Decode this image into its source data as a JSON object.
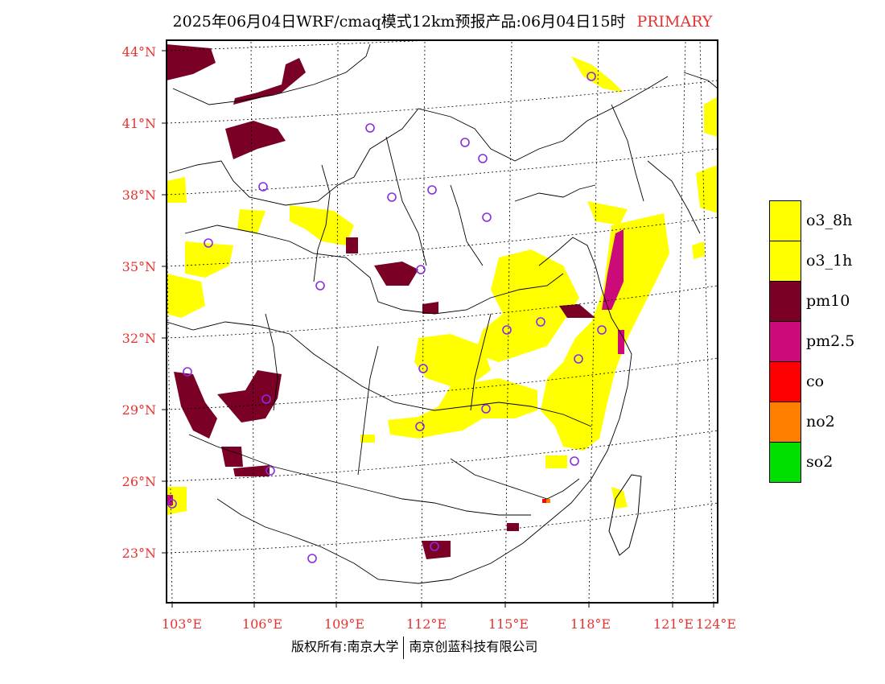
{
  "title": {
    "main": "2025年06月04日WRF/cmaq模式12km预报产品:06月04日15时",
    "tag": "PRIMARY"
  },
  "map": {
    "lat_labels": [
      "44°N",
      "41°N",
      "38°N",
      "35°N",
      "32°N",
      "29°N",
      "26°N",
      "23°N"
    ],
    "lon_labels": [
      "103°E",
      "106°E",
      "109°E",
      "112°E",
      "115°E",
      "118°E",
      "121°E",
      "124°E"
    ],
    "colors": {
      "o3_8h": "#ffff00",
      "o3_1h": "#ffff00",
      "pm10": "#7a0026",
      "pm2_5": "#cc0a7a",
      "co": "#ff0000",
      "no2": "#ff7f00",
      "so2": "#00e000",
      "city_marker": "#8a2be2",
      "grid": "#000000",
      "label": "#e8322f"
    }
  },
  "legend": [
    {
      "label": "o3_8h",
      "color": "#ffff00"
    },
    {
      "label": "o3_1h",
      "color": "#ffff00"
    },
    {
      "label": "pm10",
      "color": "#7a0026"
    },
    {
      "label": "pm2.5",
      "color": "#cc0a7a"
    },
    {
      "label": "co",
      "color": "#ff0000"
    },
    {
      "label": "no2",
      "color": "#ff7f00"
    },
    {
      "label": "so2",
      "color": "#00e000"
    }
  ],
  "footer": {
    "left": "版权所有:南京大学",
    "right": "南京创蓝科技有限公司"
  }
}
